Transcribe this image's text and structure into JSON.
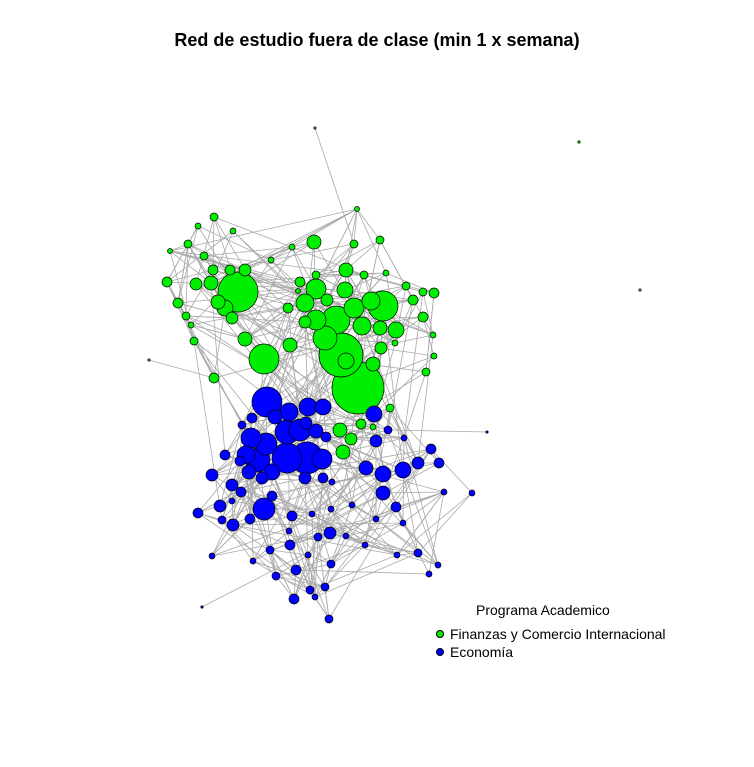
{
  "title": "Red de estudio fuera de clase (min 1 x semana)",
  "legend": {
    "title": "Programa Academico",
    "items": [
      {
        "label": "Finanzas y Comercio Internacional",
        "color": "#00ee00"
      },
      {
        "label": "Economía",
        "color": "#0000ff"
      }
    ]
  },
  "colors": {
    "edge": "#a9a9a9",
    "node_border": "#000000"
  }
}
